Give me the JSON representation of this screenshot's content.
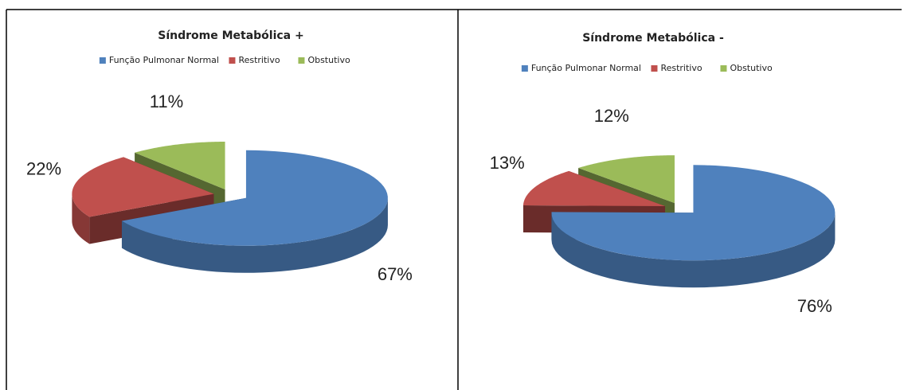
{
  "chart_data": [
    {
      "type": "pie",
      "title": "Síndrome Metabólica +",
      "categories": [
        "Função Pulmonar Normal",
        "Restritivo",
        "Obstutivo"
      ],
      "values": [
        67,
        22,
        11
      ],
      "value_labels": [
        "67%",
        "22%",
        "11%"
      ],
      "colors": [
        "#4f81bd",
        "#c0504d",
        "#9bbb59"
      ],
      "legend": "top"
    },
    {
      "type": "pie",
      "title": "Síndrome Metabólica -",
      "categories": [
        "Função Pulmonar Normal",
        "Restritivo",
        "Obstutivo"
      ],
      "values": [
        76,
        13,
        12
      ],
      "value_labels": [
        "76%",
        "13%",
        "12%"
      ],
      "colors": [
        "#4f81bd",
        "#c0504d",
        "#9bbb59"
      ],
      "legend": "top"
    }
  ]
}
